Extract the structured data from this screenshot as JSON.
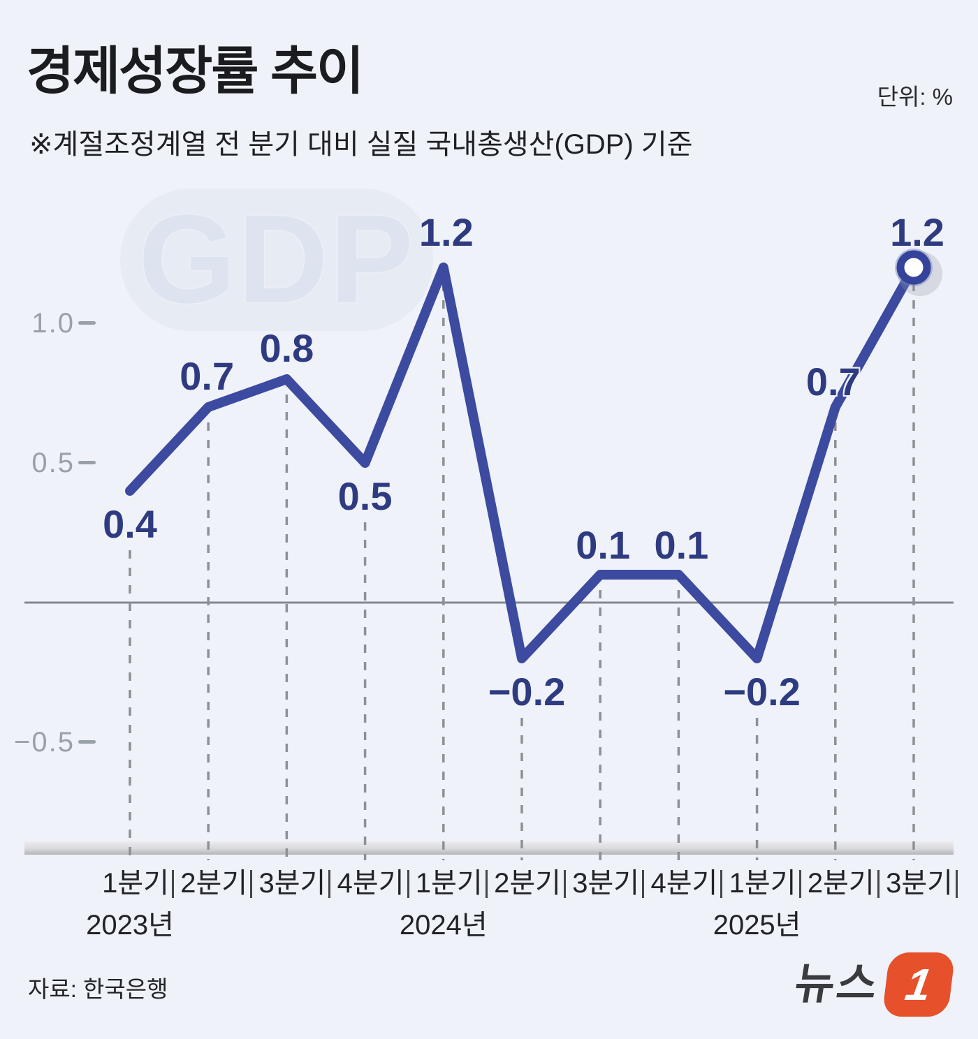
{
  "page": {
    "background": "#eff2f8"
  },
  "header": {
    "title": "경제성장률 추이",
    "subtitle": "※계절조정계열 전 분기 대비 실질 국내총생산(GDP) 기준",
    "unit_label": "단위: %"
  },
  "watermark": {
    "text": "GDP"
  },
  "footer": {
    "source_label": "자료: 한국은행",
    "logo_text": "뉴스",
    "logo_number": "1",
    "logo_color": "#e6512b"
  },
  "chart_data": {
    "type": "line",
    "title": "경제성장률 추이",
    "unit": "%",
    "x": [
      "2023 Q1",
      "2023 Q2",
      "2023 Q3",
      "2023 Q4",
      "2024 Q1",
      "2024 Q2",
      "2024 Q3",
      "2024 Q4",
      "2025 Q1",
      "2025 Q2",
      "2025 Q3"
    ],
    "categories": [
      "1분기",
      "2분기",
      "3분기",
      "4분기",
      "1분기",
      "2분기",
      "3분기",
      "4분기",
      "1분기",
      "2분기",
      "3분기"
    ],
    "year_markers": [
      {
        "index": 0,
        "label": "2023년"
      },
      {
        "index": 4,
        "label": "2024년"
      },
      {
        "index": 8,
        "label": "2025년"
      }
    ],
    "values": [
      0.4,
      0.7,
      0.8,
      0.5,
      1.2,
      -0.2,
      0.1,
      0.1,
      -0.2,
      0.7,
      1.2
    ],
    "value_labels": [
      "0.4",
      "0.7",
      "0.8",
      "0.5",
      "1.2",
      "−0.2",
      "0.1",
      "0.1",
      "−0.2",
      "0.7",
      "1.2"
    ],
    "label_positions": [
      "below",
      "above",
      "above",
      "below",
      "above",
      "below",
      "above",
      "above",
      "below",
      "above",
      "above"
    ],
    "label_adjust": [
      [
        0,
        0
      ],
      [
        -2,
        0
      ],
      [
        0,
        0
      ],
      [
        0,
        0
      ],
      [
        4,
        -6
      ],
      [
        7,
        0
      ],
      [
        4,
        2
      ],
      [
        4,
        2
      ],
      [
        7,
        0
      ],
      [
        -3,
        8
      ],
      [
        5,
        -6
      ]
    ],
    "y_ticks": [
      {
        "value": 1.0,
        "label": "1.0"
      },
      {
        "value": 0.5,
        "label": "0.5"
      },
      {
        "value": -0.5,
        "label": "−0.5"
      }
    ],
    "ylim": [
      -0.75,
      1.5
    ],
    "zero_line": true,
    "grid": "dashed-vertical-droplines",
    "legend": "none",
    "last_point_marker": true,
    "colors": {
      "line": "#3c4aa0",
      "value_label": "#2f3b80",
      "dash": "#8d9096",
      "zero_line": "#85888e",
      "axis_text": "#9aa0a9",
      "band_top": "#efeff2",
      "band_mid": "#d9dadd",
      "band_bottom": "#b4b5b9",
      "marker_ring": "#35439a",
      "marker_halo": "rgba(118,130,190,0.45)",
      "text_dark": "#222326"
    }
  }
}
